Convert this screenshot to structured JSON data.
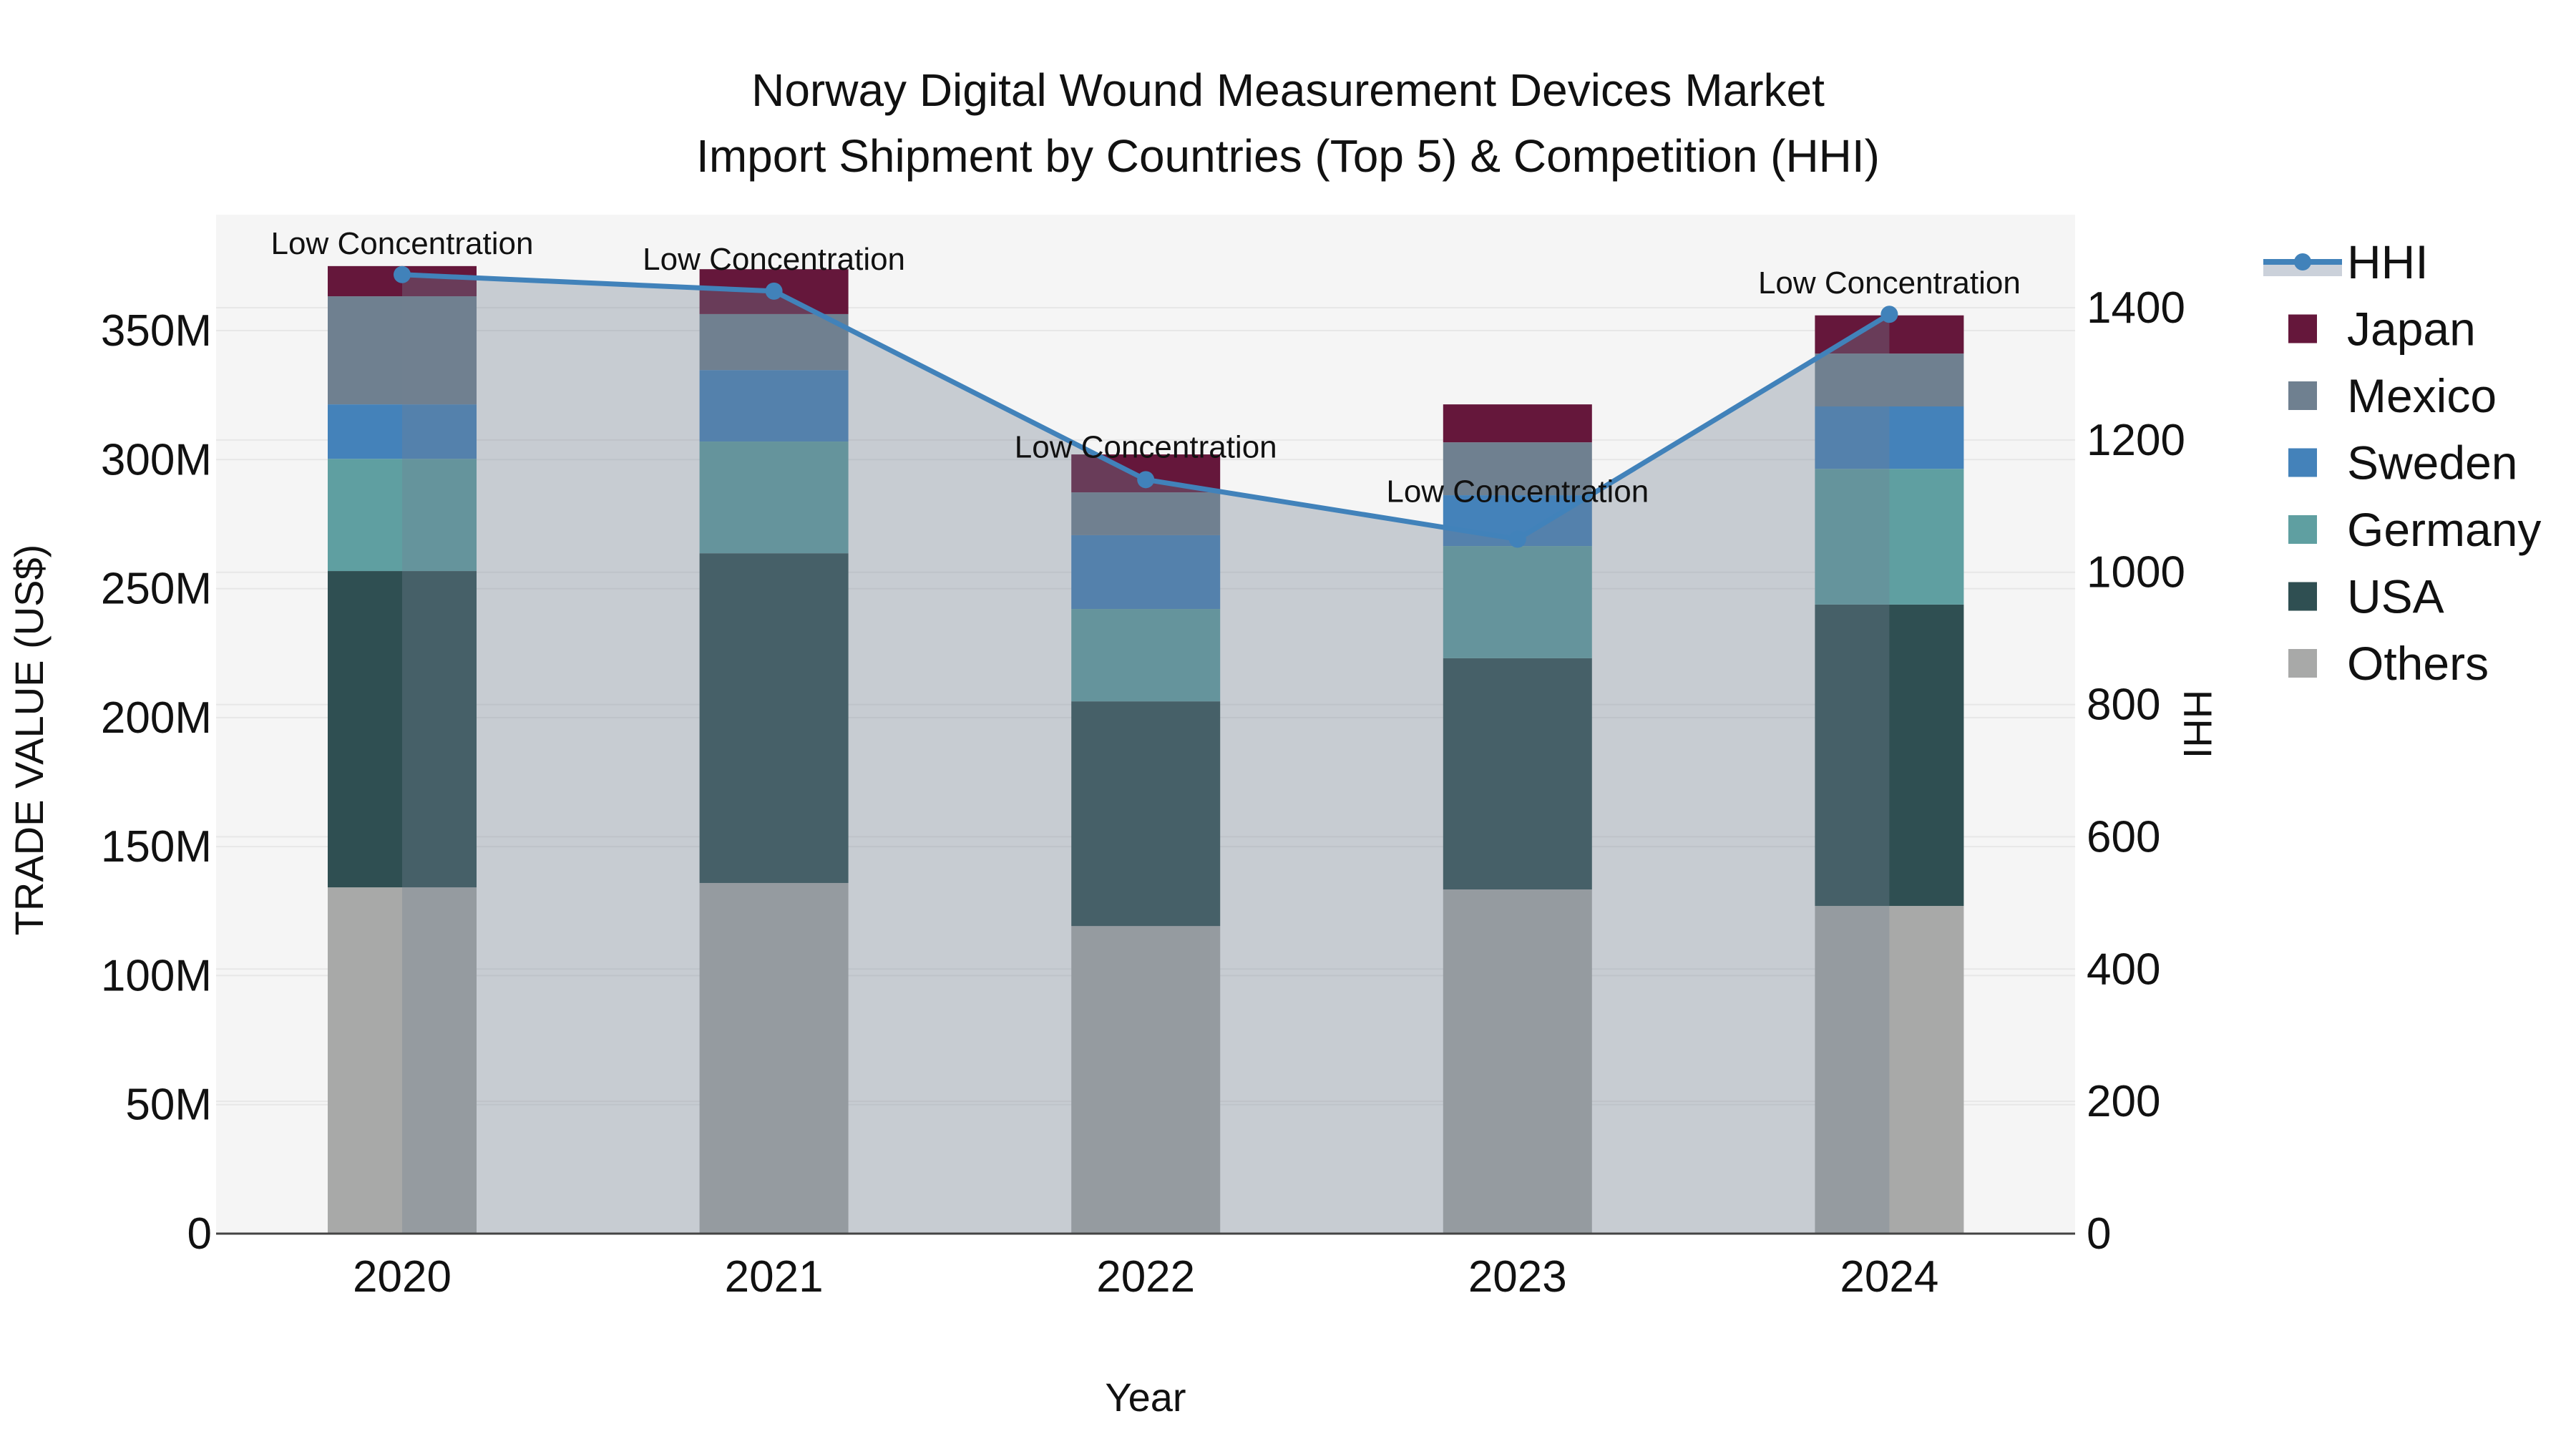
{
  "chart_data": {
    "type": "combo-stacked-bar-line",
    "title": "Norway Digital Wound Measurement Devices Market",
    "subtitle": "Import Shipment by Countries (Top 5) & Competition (HHI)",
    "xlabel": "Year",
    "ylabel_left": "TRADE VALUE (US$)",
    "ylabel_right": "HHI",
    "categories": [
      "2020",
      "2021",
      "2022",
      "2023",
      "2024"
    ],
    "value_unit": "million US$",
    "series": [
      {
        "name": "Others",
        "color": "#A8A9A8",
        "values": [
          134.2,
          135.9,
          119.2,
          133.4,
          127.0
        ]
      },
      {
        "name": "USA",
        "color": "#2F4F52",
        "values": [
          122.6,
          127.8,
          87.1,
          89.6,
          116.8
        ]
      },
      {
        "name": "Germany",
        "color": "#5F9FA1",
        "values": [
          43.5,
          43.3,
          35.8,
          43.5,
          52.6
        ]
      },
      {
        "name": "Sweden",
        "color": "#4482BA",
        "values": [
          21.1,
          27.7,
          28.6,
          19.7,
          24.2
        ]
      },
      {
        "name": "Mexico",
        "color": "#6F8090",
        "values": [
          41.9,
          21.7,
          16.6,
          20.5,
          20.5
        ]
      },
      {
        "name": "Japan",
        "color": "#65173B",
        "values": [
          11.7,
          17.4,
          14.7,
          14.7,
          14.8
        ]
      }
    ],
    "bar_totals": [
      375.0,
      373.8,
      302.0,
      321.4,
      355.9
    ],
    "line": {
      "name": "HHI",
      "color": "#4182BA",
      "area_fill": "rgba(115,130,145,0.35)",
      "legend_band_color": "#CBD1DA",
      "values": [
        1450,
        1425,
        1140,
        1050,
        1390
      ]
    },
    "annotations": [
      {
        "text": "Low Concentration",
        "dy": 44
      },
      {
        "text": "Low Concentration",
        "dy": 45
      },
      {
        "text": "Low Concentration",
        "dy": 46
      },
      {
        "text": "Low Concentration",
        "dy": 67
      },
      {
        "text": "Low Concentration",
        "dy": 44
      }
    ],
    "y_left": {
      "tick_values": [
        0,
        50,
        100,
        150,
        200,
        250,
        300,
        350
      ],
      "tick_labels": [
        "0",
        "50M",
        "100M",
        "150M",
        "200M",
        "250M",
        "300M",
        "350M"
      ],
      "range": [
        0,
        395
      ],
      "grid": true
    },
    "y_right": {
      "tick_values": [
        0,
        200,
        400,
        600,
        800,
        1000,
        1200,
        1400
      ],
      "tick_labels": [
        "0",
        "200",
        "400",
        "600",
        "800",
        "1000",
        "1200",
        "1400"
      ],
      "range": [
        0,
        1540
      ],
      "grid": true
    },
    "legend": [
      {
        "label": "HHI",
        "type": "line",
        "color": "#4182BA"
      },
      {
        "label": "Japan",
        "type": "square",
        "color": "#65173B"
      },
      {
        "label": "Mexico",
        "type": "square",
        "color": "#6F8090"
      },
      {
        "label": "Sweden",
        "type": "square",
        "color": "#4482BA"
      },
      {
        "label": "Germany",
        "type": "square",
        "color": "#5F9FA1"
      },
      {
        "label": "USA",
        "type": "square",
        "color": "#2F4F52"
      },
      {
        "label": "Others",
        "type": "square",
        "color": "#A8A9A8"
      }
    ],
    "legend_position": "right",
    "plot_bg": "#F5F5F5",
    "grid_color": "#E7E7E7",
    "axis_line_color": "#444444",
    "text_color": "#111111"
  }
}
